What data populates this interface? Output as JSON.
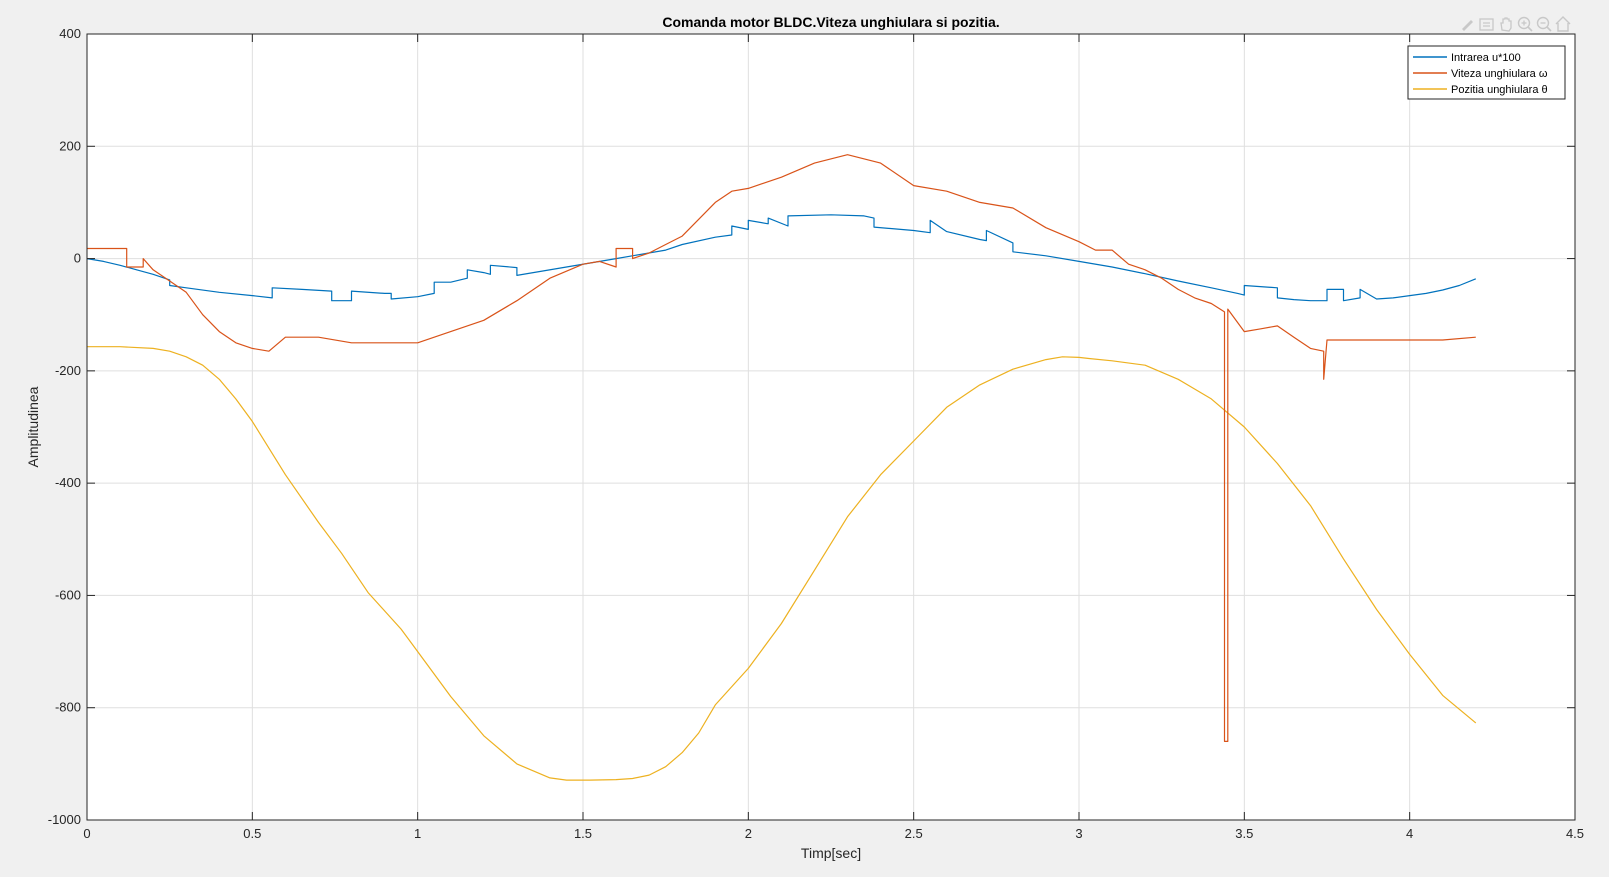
{
  "chart_data": {
    "type": "line",
    "title": "Comanda motor BLDC.Viteza unghiulara si pozitia.",
    "xlabel": "Timp[sec]",
    "ylabel": "Amplitudinea",
    "xlim": [
      0,
      4.5
    ],
    "ylim": [
      -1000,
      400
    ],
    "x_ticks": [
      "0",
      "0.5",
      "1",
      "1.5",
      "2",
      "2.5",
      "3",
      "3.5",
      "4",
      "4.5"
    ],
    "y_ticks": [
      "400",
      "200",
      "0",
      "-200",
      "-400",
      "-600",
      "-800",
      "-1000"
    ],
    "grid": true,
    "legend_position": "top-right",
    "series": [
      {
        "name": "Intrarea u*100",
        "color": "#0072BD",
        "x": [
          0,
          0.05,
          0.1,
          0.15,
          0.2,
          0.25,
          0.25,
          0.3,
          0.4,
          0.5,
          0.56,
          0.56,
          0.65,
          0.74,
          0.74,
          0.8,
          0.8,
          0.9,
          0.92,
          0.92,
          1.0,
          1.05,
          1.05,
          1.1,
          1.15,
          1.15,
          1.2,
          1.22,
          1.22,
          1.3,
          1.3,
          1.45,
          1.6,
          1.75,
          1.8,
          1.9,
          1.95,
          1.95,
          2.0,
          2.0,
          2.06,
          2.06,
          2.12,
          2.12,
          2.25,
          2.35,
          2.38,
          2.38,
          2.5,
          2.55,
          2.55,
          2.6,
          2.7,
          2.72,
          2.72,
          2.8,
          2.8,
          2.9,
          3.0,
          3.1,
          3.2,
          3.3,
          3.4,
          3.48,
          3.5,
          3.5,
          3.6,
          3.6,
          3.65,
          3.7,
          3.75,
          3.75,
          3.8,
          3.8,
          3.85,
          3.85,
          3.9,
          3.95,
          4.0,
          4.05,
          4.1,
          4.15,
          4.2
        ],
        "y": [
          0,
          -5,
          -12,
          -20,
          -28,
          -38,
          -48,
          -52,
          -60,
          -66,
          -70,
          -52,
          -55,
          -58,
          -75,
          -75,
          -58,
          -62,
          -62,
          -72,
          -68,
          -62,
          -42,
          -42,
          -35,
          -20,
          -25,
          -28,
          -12,
          -16,
          -30,
          -15,
          0,
          15,
          25,
          38,
          42,
          58,
          52,
          68,
          62,
          72,
          58,
          76,
          78,
          76,
          72,
          56,
          50,
          46,
          68,
          48,
          34,
          32,
          50,
          28,
          12,
          5,
          -5,
          -15,
          -27,
          -40,
          -52,
          -62,
          -65,
          -48,
          -52,
          -70,
          -73,
          -75,
          -75,
          -55,
          -55,
          -75,
          -70,
          -55,
          -72,
          -70,
          -66,
          -62,
          -56,
          -48,
          -36
        ]
      },
      {
        "name": "Viteza unghiulara ω",
        "color": "#D95319",
        "x": [
          0,
          0.12,
          0.12,
          0.17,
          0.17,
          0.2,
          0.25,
          0.3,
          0.35,
          0.4,
          0.45,
          0.5,
          0.55,
          0.6,
          0.7,
          0.8,
          0.9,
          1.0,
          1.1,
          1.2,
          1.3,
          1.4,
          1.5,
          1.55,
          1.6,
          1.6,
          1.65,
          1.65,
          1.7,
          1.75,
          1.8,
          1.85,
          1.9,
          1.95,
          2.0,
          2.1,
          2.2,
          2.3,
          2.4,
          2.5,
          2.6,
          2.7,
          2.8,
          2.9,
          3.0,
          3.05,
          3.1,
          3.15,
          3.2,
          3.25,
          3.3,
          3.35,
          3.4,
          3.44,
          3.44,
          3.45,
          3.45,
          3.5,
          3.55,
          3.6,
          3.65,
          3.7,
          3.74,
          3.74,
          3.75,
          3.8,
          3.9,
          4.0,
          4.1,
          4.2
        ],
        "y": [
          18,
          18,
          -15,
          -15,
          0,
          -20,
          -40,
          -60,
          -100,
          -130,
          -150,
          -160,
          -165,
          -140,
          -140,
          -150,
          -150,
          -150,
          -130,
          -110,
          -75,
          -35,
          -10,
          -5,
          -15,
          18,
          18,
          0,
          10,
          25,
          40,
          70,
          100,
          120,
          125,
          145,
          170,
          185,
          170,
          130,
          120,
          100,
          90,
          55,
          30,
          15,
          15,
          -10,
          -20,
          -35,
          -55,
          -70,
          -80,
          -95,
          -860,
          -860,
          -90,
          -130,
          -125,
          -120,
          -140,
          -160,
          -165,
          -215,
          -145,
          -145,
          -145,
          -145,
          -145,
          -140
        ]
      },
      {
        "name": "Pozitia unghiulara θ",
        "color": "#EDB120",
        "x": [
          0,
          0.1,
          0.2,
          0.25,
          0.3,
          0.35,
          0.4,
          0.45,
          0.5,
          0.6,
          0.7,
          0.77,
          0.85,
          0.95,
          1.0,
          1.1,
          1.2,
          1.3,
          1.4,
          1.45,
          1.52,
          1.6,
          1.65,
          1.7,
          1.75,
          1.8,
          1.85,
          1.9,
          2.0,
          2.1,
          2.2,
          2.3,
          2.4,
          2.5,
          2.6,
          2.7,
          2.8,
          2.9,
          2.95,
          3.0,
          3.03,
          3.1,
          3.2,
          3.3,
          3.4,
          3.5,
          3.6,
          3.7,
          3.8,
          3.9,
          4.0,
          4.1,
          4.2
        ],
        "y": [
          -157,
          -157,
          -160,
          -165,
          -175,
          -190,
          -215,
          -250,
          -290,
          -385,
          -470,
          -525,
          -595,
          -660,
          -700,
          -780,
          -850,
          -900,
          -925,
          -929,
          -929,
          -928,
          -926,
          -920,
          -905,
          -880,
          -845,
          -795,
          -730,
          -650,
          -555,
          -460,
          -385,
          -325,
          -265,
          -225,
          -197,
          -180,
          -175,
          -176,
          -178,
          -182,
          -190,
          -215,
          -250,
          -300,
          -365,
          -440,
          -535,
          -625,
          -705,
          -778,
          -827
        ]
      }
    ]
  },
  "toolbar": {
    "icons": [
      "brush-icon",
      "data-tip-icon",
      "pan-icon",
      "zoom-in-icon",
      "zoom-out-icon",
      "home-icon"
    ]
  }
}
